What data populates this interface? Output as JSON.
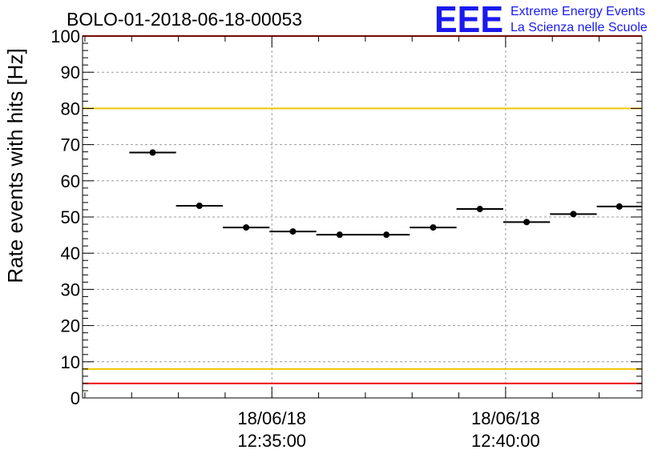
{
  "chart_data": {
    "type": "scatter",
    "title": "BOLO-01-2018-06-18-00053",
    "ylabel": "Rate events with hits [Hz]",
    "xlabel": "",
    "ylim": [
      0,
      100
    ],
    "yticks": [
      0,
      10,
      20,
      30,
      40,
      50,
      60,
      70,
      80,
      90,
      100
    ],
    "xlim": [
      "12:30:57",
      "12:42:55"
    ],
    "xticks": [
      {
        "date": "18/06/18",
        "time": "12:35:00"
      },
      {
        "date": "18/06/18",
        "time": "12:40:00"
      }
    ],
    "grid": true,
    "points": [
      {
        "x_start": "12:31:57",
        "x_end": "12:32:57",
        "y": 67.8
      },
      {
        "x_start": "12:32:57",
        "x_end": "12:33:57",
        "y": 53.1
      },
      {
        "x_start": "12:33:57",
        "x_end": "12:34:57",
        "y": 47.1
      },
      {
        "x_start": "12:34:57",
        "x_end": "12:35:57",
        "y": 46.0
      },
      {
        "x_start": "12:35:57",
        "x_end": "12:36:57",
        "y": 45.1
      },
      {
        "x_start": "12:36:57",
        "x_end": "12:37:57",
        "y": 45.1
      },
      {
        "x_start": "12:37:57",
        "x_end": "12:38:57",
        "y": 47.1
      },
      {
        "x_start": "12:38:57",
        "x_end": "12:39:57",
        "y": 52.2
      },
      {
        "x_start": "12:39:57",
        "x_end": "12:40:57",
        "y": 48.6
      },
      {
        "x_start": "12:40:57",
        "x_end": "12:41:57",
        "y": 50.8
      },
      {
        "x_start": "12:41:57",
        "x_end": "12:42:55",
        "y": 52.9
      }
    ],
    "reference_lines": [
      {
        "y": 100,
        "color": "#ee1111"
      },
      {
        "y": 80,
        "color": "#f0c800"
      },
      {
        "y": 8,
        "color": "#f0c800"
      },
      {
        "y": 4,
        "color": "#ee1111"
      }
    ]
  },
  "logo": {
    "mark": "EEE",
    "line1": "Extreme Energy Events",
    "line2": "La Scienza nelle Scuole",
    "color": "#1a1aee"
  }
}
